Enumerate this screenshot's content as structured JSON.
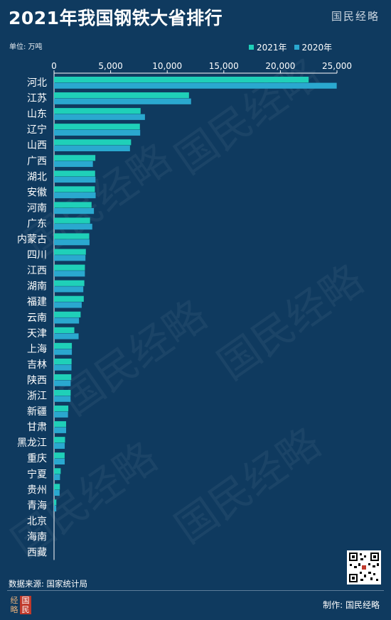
{
  "header": {
    "title": "2021年我国钢铁大省排行",
    "brand": "国民经略",
    "unit": "单位: 万吨"
  },
  "footer": {
    "source": "数据来源: 国家统计局",
    "maker": "制作: 国民经略",
    "seal_chars": [
      "经",
      "国",
      "略",
      "民"
    ]
  },
  "watermark_text": "国民经略",
  "colors": {
    "background": "#0f3a5f",
    "series_2021": "#1fd0b8",
    "series_2020": "#2aa8cf",
    "axis": "#ffffff"
  },
  "chart_data": {
    "type": "bar",
    "orientation": "horizontal",
    "title": "2021年我国钢铁大省排行",
    "unit": "万吨",
    "xlim": [
      0,
      25000
    ],
    "xticks": [
      0,
      5000,
      10000,
      15000,
      20000,
      25000
    ],
    "xtick_labels": [
      "0",
      "5,000",
      "10,000",
      "15,000",
      "20,000",
      "25,000"
    ],
    "legend_position": "top-right",
    "grid": false,
    "categories": [
      "河北",
      "江苏",
      "山东",
      "辽宁",
      "山西",
      "广西",
      "湖北",
      "安徽",
      "河南",
      "广东",
      "内蒙古",
      "四川",
      "江西",
      "湖南",
      "福建",
      "云南",
      "天津",
      "上海",
      "吉林",
      "陕西",
      "浙江",
      "新疆",
      "甘肃",
      "黑龙江",
      "重庆",
      "宁夏",
      "贵州",
      "青海",
      "北京",
      "海南",
      "西藏"
    ],
    "series": [
      {
        "name": "2021年",
        "values": [
          22497,
          11925,
          7650,
          7587,
          6806,
          3651,
          3629,
          3611,
          3316,
          3183,
          3112,
          2813,
          2729,
          2677,
          2627,
          2349,
          1793,
          1576,
          1550,
          1522,
          1471,
          1262,
          1066,
          974,
          936,
          589,
          516,
          207,
          0,
          0,
          0
        ]
      },
      {
        "name": "2020年",
        "values": [
          24977,
          12108,
          8033,
          7613,
          6712,
          3433,
          3664,
          3679,
          3525,
          3378,
          3135,
          2776,
          2726,
          2587,
          2445,
          2209,
          2170,
          1576,
          1544,
          1472,
          1461,
          1234,
          1068,
          945,
          942,
          529,
          494,
          196,
          0,
          0,
          0
        ]
      }
    ]
  }
}
